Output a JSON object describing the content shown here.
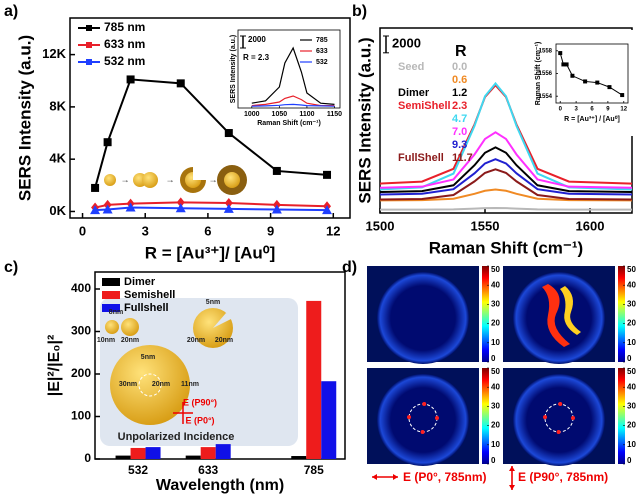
{
  "chart_data": [
    {
      "type": "line",
      "panel_label": "a)",
      "x_label": "R = [Au³⁺]/ [Au⁰]",
      "y_label": "SERS Intensity (a.u.)",
      "xlim": [
        -0.6,
        12.8
      ],
      "xticks": [
        0,
        3,
        6,
        9,
        12
      ],
      "ylim": [
        -500,
        14800
      ],
      "yticks": [
        {
          "value": 0,
          "label": "0K"
        },
        {
          "value": 4000,
          "label": "4K"
        },
        {
          "value": 8000,
          "label": "8K"
        },
        {
          "value": 12000,
          "label": "12K"
        }
      ],
      "x": [
        0.6,
        1.2,
        2.3,
        4.7,
        7.0,
        9.3,
        11.7
      ],
      "series": [
        {
          "name": "785 nm",
          "color": "#000000",
          "marker": "square",
          "values": [
            1800,
            5300,
            10100,
            9800,
            6000,
            3100,
            2800
          ]
        },
        {
          "name": "633 nm",
          "color": "#e8202a",
          "marker": "diamond",
          "values": [
            300,
            500,
            600,
            700,
            650,
            500,
            400
          ]
        },
        {
          "name": "532 nm",
          "color": "#1f3fff",
          "marker": "triangle",
          "values": [
            100,
            150,
            300,
            250,
            200,
            150,
            100
          ]
        }
      ],
      "inset": {
        "x_label": "Raman Shift (cm⁻¹)",
        "y_label": "SERS Intensity (a.u.)",
        "annotation": "R = 2.3",
        "scale_bar": 2000,
        "xlim": [
          975,
          1160
        ],
        "xticks": [
          1000,
          1050,
          1100,
          1150
        ],
        "ylim": [
          0,
          13000
        ],
        "x": [
          1000,
          1025,
          1050,
          1060,
          1075,
          1090,
          1100,
          1125,
          1150
        ],
        "series": [
          {
            "name": "785",
            "color": "#000000",
            "values": [
              800,
              1200,
              3500,
              7500,
              10000,
              6000,
              2500,
              800,
              600
            ]
          },
          {
            "name": "633",
            "color": "#e8202a",
            "values": [
              400,
              600,
              1000,
              1600,
              2000,
              1400,
              800,
              400,
              400
            ]
          },
          {
            "name": "532",
            "color": "#1f3fff",
            "values": [
              300,
              350,
              450,
              550,
              600,
              500,
              400,
              350,
              300
            ]
          }
        ]
      }
    },
    {
      "type": "line",
      "panel_label": "b)",
      "x_label": "Raman Shift (cm⁻¹)",
      "y_label": "SERS Intensity (a.u.)",
      "xlim": [
        1500,
        1620
      ],
      "xticks": [
        1500,
        1550,
        1600
      ],
      "ylim": [
        0,
        22000
      ],
      "scale_bar": 2000,
      "legend_title": "R",
      "legend_groups": [
        "Seed",
        null,
        "Dimer",
        "SemiShell",
        null,
        null,
        null,
        "FullShell"
      ],
      "x": [
        1500,
        1520,
        1535,
        1545,
        1550,
        1555,
        1560,
        1565,
        1575,
        1590,
        1620
      ],
      "series": [
        {
          "name": "0.0",
          "color": "#b8b8b8",
          "values": [
            400,
            404,
            430,
            520,
            576,
            600,
            576,
            520,
            430,
            404,
            400
          ]
        },
        {
          "name": "0.6",
          "color": "#f08a24",
          "values": [
            1500,
            1526,
            1695,
            2280,
            2644,
            2800,
            2644,
            2280,
            1695,
            1526,
            1500
          ]
        },
        {
          "name": "1.2",
          "color": "#000000",
          "values": [
            2500,
            2606,
            3295,
            5680,
            7164,
            7800,
            7164,
            5680,
            3295,
            2606,
            2500
          ]
        },
        {
          "name": "2.3",
          "color": "#e8202a",
          "values": [
            3500,
            3734,
            5255,
            10520,
            13796,
            15200,
            13796,
            10520,
            5255,
            3734,
            3500
          ]
        },
        {
          "name": "4.7",
          "color": "#3fd8f0",
          "values": [
            2800,
            3052,
            4690,
            10360,
            13888,
            15400,
            13888,
            10360,
            4690,
            3052,
            2800
          ]
        },
        {
          "name": "7.0",
          "color": "#ff30ff",
          "values": [
            3000,
            3132,
            3990,
            6960,
            8808,
            9600,
            8808,
            6960,
            3990,
            3132,
            3000
          ]
        },
        {
          "name": "9.3",
          "color": "#2020d0",
          "values": [
            2200,
            2284,
            2830,
            4720,
            5896,
            6400,
            5896,
            4720,
            2830,
            2284,
            2200
          ]
        },
        {
          "name": "11.7",
          "color": "#8b1a1a",
          "values": [
            1600,
            1672,
            2140,
            3760,
            4768,
            5200,
            4768,
            3760,
            2140,
            1672,
            1600
          ]
        }
      ],
      "inset": {
        "x_label": "R = [Au³⁺] / [Au⁰]",
        "y_label": "Raman Shift (cm⁻¹)",
        "xlim": [
          -0.8,
          12.8
        ],
        "xticks": [
          0,
          3,
          6,
          9,
          12
        ],
        "ylim": [
          1553.4,
          1558.6
        ],
        "yticks": [
          1554,
          1556,
          1558
        ],
        "x": [
          0,
          0.6,
          1.2,
          2.3,
          4.7,
          7.0,
          9.3,
          11.7
        ],
        "color": "#000000",
        "values": [
          1557.8,
          1556.8,
          1556.8,
          1555.8,
          1555.3,
          1555.2,
          1554.8,
          1554.1
        ]
      }
    },
    {
      "type": "bar",
      "panel_label": "c)",
      "x_label": "Wavelength (nm)",
      "y_label": "|E|²/|E₀|²",
      "xlim": [
        470,
        830
      ],
      "x": [
        532,
        633,
        785
      ],
      "xticks": [
        532,
        633,
        785
      ],
      "ylim": [
        0,
        440
      ],
      "yticks": [
        0,
        100,
        200,
        300,
        400
      ],
      "series": [
        {
          "name": "Dimer",
          "color": "#000000",
          "values": [
            8,
            8,
            7
          ]
        },
        {
          "name": "Semishell",
          "color": "#ee1c1c",
          "values": [
            26,
            28,
            372
          ]
        },
        {
          "name": "Fullshell",
          "color": "#1010e8",
          "values": [
            28,
            35,
            183
          ]
        }
      ],
      "annotations": [
        "8nm",
        "10nm",
        "20nm",
        "5nm",
        "20nm",
        "20nm",
        "5nm",
        "30nm",
        "20nm",
        "11nm",
        "E (P90°)",
        "E (P0°)",
        "Unpolarized Incidence"
      ]
    },
    {
      "type": "heatmap",
      "panel_label": "d)",
      "clim": [
        0,
        50
      ],
      "colorbar_ticks": [
        0,
        10,
        20,
        30,
        40,
        50
      ],
      "captions": [
        "E (P0°, 785nm)",
        "E (P90°, 785nm)"
      ]
    }
  ]
}
